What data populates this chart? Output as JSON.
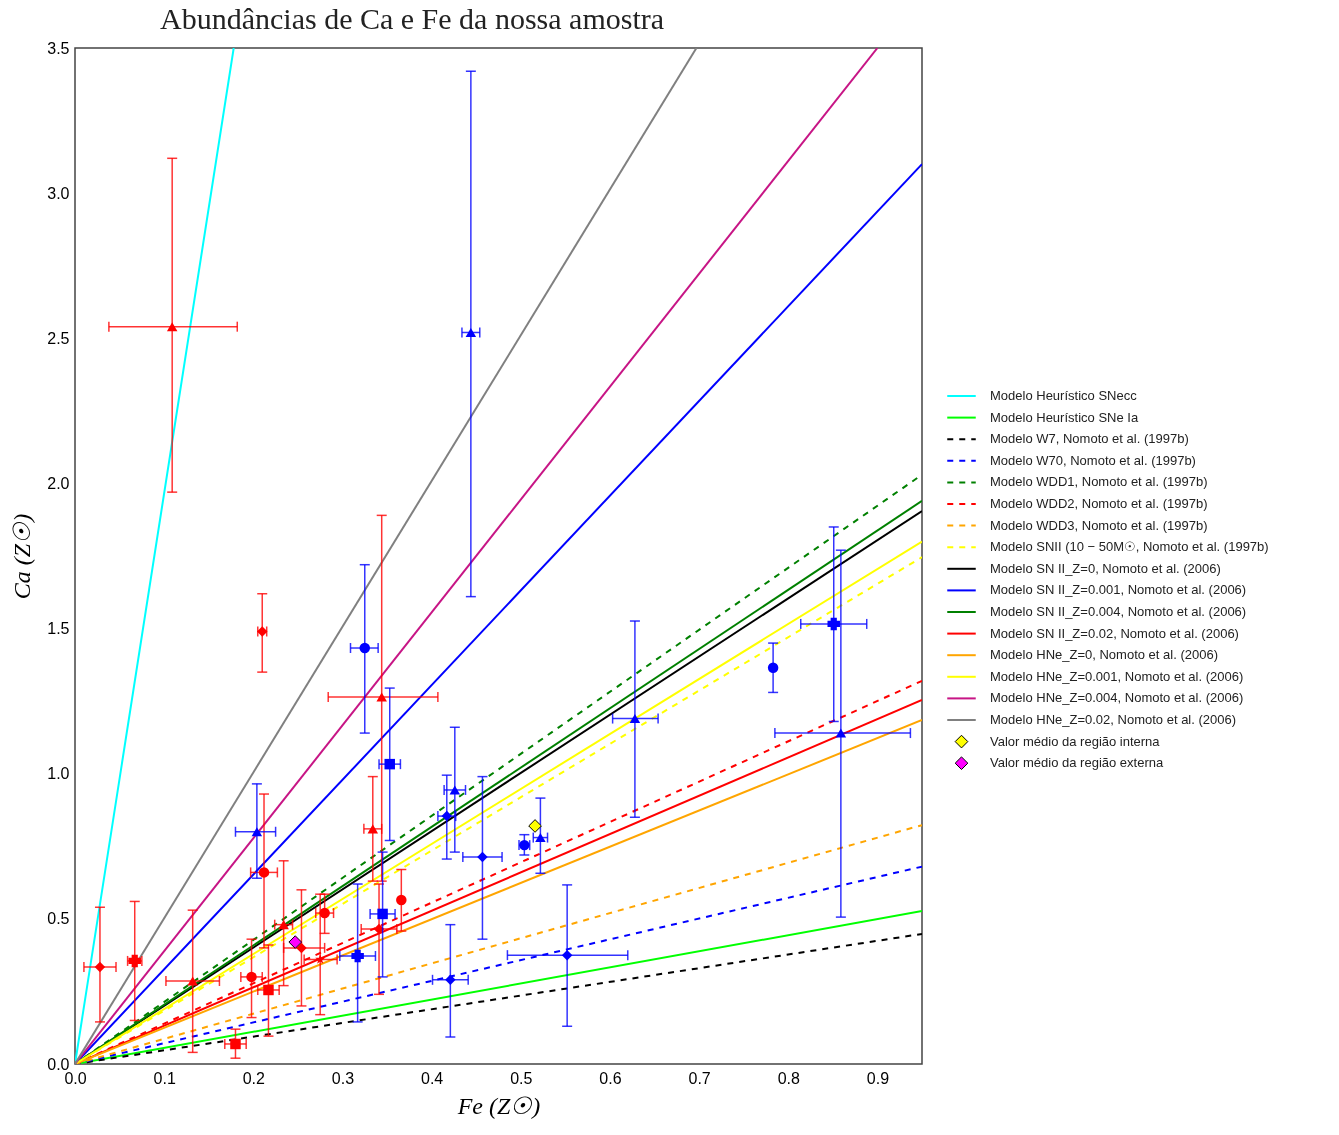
{
  "chart_data": {
    "type": "scatter",
    "title": "Abundâncias de Ca e Fe da nossa amostra",
    "xlabel": "Fe (Z☉)",
    "ylabel": "Ca (Z☉)",
    "xlim": [
      0,
      0.95
    ],
    "ylim": [
      0,
      3.5
    ],
    "xticks": [
      {
        "value": 0,
        "label": "0.0"
      },
      0.1,
      0.2,
      0.3,
      0.4,
      0.5,
      0.6,
      0.7,
      0.8,
      0.9
    ],
    "yticks": [
      {
        "value": 0,
        "label": "0.0"
      },
      0.5,
      {
        "value": 1,
        "label": "1.0"
      },
      1.5,
      {
        "value": 2,
        "label": "2.0"
      },
      2.5,
      {
        "value": 3,
        "label": "3.0"
      },
      3.5
    ],
    "grid": false,
    "legend": "right",
    "series": [
      {
        "name": "Modelo Heurístico SNecc",
        "color": "#00ffff",
        "type": "line",
        "line_style": "solid",
        "x": [
          0,
          0.178
        ],
        "values": [
          0,
          3.5
        ]
      },
      {
        "name": "Modelo Heurístico SNe Ia",
        "color": "#00ff00",
        "type": "line",
        "line_style": "solid",
        "x": [
          0,
          0.95
        ],
        "values": [
          0,
          0.527
        ]
      },
      {
        "name": "Modelo W7, Nomoto et al. (1997b)",
        "color": "#000000",
        "type": "line",
        "line_style": "dashed",
        "x": [
          0,
          0.95
        ],
        "values": [
          0,
          0.448
        ]
      },
      {
        "name": "Modelo W70, Nomoto et al. (1997b)",
        "color": "#0000ff",
        "type": "line",
        "line_style": "dashed",
        "x": [
          0,
          0.95
        ],
        "values": [
          0,
          0.68
        ]
      },
      {
        "name": "Modelo WDD1, Nomoto et al. (1997b)",
        "color": "#008000",
        "type": "line",
        "line_style": "dashed",
        "x": [
          0,
          0.95
        ],
        "values": [
          0,
          2.03
        ]
      },
      {
        "name": "Modelo WDD2, Nomoto et al. (1997b)",
        "color": "#ff0000",
        "type": "line",
        "line_style": "dashed",
        "x": [
          0,
          0.95
        ],
        "values": [
          0,
          1.32
        ]
      },
      {
        "name": "Modelo WDD3, Nomoto et al. (1997b)",
        "color": "#ffa500",
        "type": "line",
        "line_style": "dashed",
        "x": [
          0,
          0.95
        ],
        "values": [
          0,
          0.823
        ]
      },
      {
        "name": "Modelo SNII (10 − 50M☉, Nomoto et al. (1997b)",
        "color": "#ffff00",
        "type": "line",
        "line_style": "dashed",
        "x": [
          0,
          0.95
        ],
        "values": [
          0,
          1.746
        ]
      },
      {
        "name": "Modelo SN II_Z=0, Nomoto et al. (2006)",
        "color": "#000000",
        "type": "line",
        "line_style": "solid",
        "x": [
          0,
          0.95
        ],
        "values": [
          0,
          1.905
        ]
      },
      {
        "name": "Modelo SN II_Z=0.001, Nomoto et al. (2006)",
        "color": "#0000ff",
        "type": "line",
        "line_style": "solid",
        "x": [
          0,
          0.95
        ],
        "values": [
          0,
          3.1
        ]
      },
      {
        "name": "Modelo SN II_Z=0.004, Nomoto et al. (2006)",
        "color": "#008000",
        "type": "line",
        "line_style": "solid",
        "x": [
          0,
          0.95
        ],
        "values": [
          0,
          1.94
        ]
      },
      {
        "name": "Modelo SN II_Z=0.02, Nomoto et al. (2006)",
        "color": "#ff0000",
        "type": "line",
        "line_style": "solid",
        "x": [
          0,
          0.95
        ],
        "values": [
          0,
          1.254
        ]
      },
      {
        "name": "Modelo HNe_Z=0, Nomoto et al. (2006)",
        "color": "#ffa500",
        "type": "line",
        "line_style": "solid",
        "x": [
          0,
          0.95
        ],
        "values": [
          0,
          1.185
        ]
      },
      {
        "name": "Modelo HNe_Z=0.001, Nomoto et al. (2006)",
        "color": "#ffff00",
        "type": "line",
        "line_style": "solid",
        "x": [
          0,
          0.95
        ],
        "values": [
          0,
          1.8
        ]
      },
      {
        "name": "Modelo HNe_Z=0.004, Nomoto et al. (2006)",
        "color": "#c71585",
        "type": "line",
        "line_style": "solid",
        "x": [
          0,
          0.9
        ],
        "values": [
          0,
          3.5
        ]
      },
      {
        "name": "Modelo HNe_Z=0.02, Nomoto et al. (2006)",
        "color": "#808080",
        "type": "line",
        "line_style": "solid",
        "x": [
          0,
          0.697
        ],
        "values": [
          0,
          3.5
        ]
      },
      {
        "color": "#ff0000",
        "marker": "diamond",
        "x": [
          0.028,
          0.21,
          0.254,
          0.341
        ],
        "values": [
          0.334,
          1.49,
          0.4,
          0.465
        ],
        "errors": [
          [
            0.145,
            0.54
          ],
          [
            1.35,
            1.62
          ],
          [
            0.2,
            0.6
          ],
          [
            0.24,
            0.62
          ]
        ],
        "xerrors": [
          [
            0.01,
            0.046
          ],
          [
            0.205,
            0.215
          ],
          [
            0.234,
            0.28
          ],
          [
            0.321,
            0.361
          ]
        ]
      },
      {
        "color": "#ff0000",
        "marker": "cross",
        "x": [
          0.067
        ],
        "values": [
          0.355
        ],
        "errors": [
          [
            0.15,
            0.56
          ]
        ],
        "xerrors": [
          [
            0.059,
            0.075
          ]
        ]
      },
      {
        "color": "#ff0000",
        "marker": "triangle",
        "x": [
          0.109,
          0.132,
          0.234,
          0.334,
          0.344
        ],
        "values": [
          2.54,
          0.286,
          0.48,
          0.81,
          1.264
        ],
        "errors": [
          [
            1.97,
            3.12
          ],
          [
            0.04,
            0.53
          ],
          [
            0.27,
            0.7
          ],
          [
            0.63,
            0.99
          ],
          [
            0.63,
            1.89
          ]
        ],
        "xerrors": [
          [
            0.038,
            0.182
          ],
          [
            0.102,
            0.162
          ],
          [
            0.224,
            0.244
          ],
          [
            0.324,
            0.344
          ],
          [
            0.284,
            0.407
          ]
        ]
      },
      {
        "color": "#ff0000",
        "marker": "square",
        "x": [
          0.18,
          0.217
        ],
        "values": [
          0.069,
          0.255
        ],
        "errors": [
          [
            0.02,
            0.12
          ],
          [
            0.096,
            0.41
          ]
        ],
        "xerrors": [
          [
            0.168,
            0.192
          ],
          [
            0.205,
            0.229
          ]
        ]
      },
      {
        "color": "#ff0000",
        "marker": "circle",
        "x": [
          0.198,
          0.212,
          0.28,
          0.366
        ],
        "values": [
          0.3,
          0.66,
          0.52,
          0.565
        ],
        "errors": [
          [
            0.16,
            0.43
          ],
          [
            0.4,
            0.93
          ],
          [
            0.45,
            0.585
          ],
          [
            0.458,
            0.67
          ]
        ],
        "xerrors": [
          [
            0.186,
            0.21
          ],
          [
            0.197,
            0.227
          ],
          [
            0.27,
            0.29
          ],
          null
        ]
      },
      {
        "color": "#ff0000",
        "marker": "star",
        "x": [
          0.275
        ],
        "values": [
          0.36
        ],
        "errors": [
          [
            0.17,
            0.585
          ]
        ],
        "xerrors": [
          [
            0.257,
            0.294
          ]
        ]
      },
      {
        "color": "#0000ff",
        "marker": "triangle",
        "x": [
          0.204,
          0.426,
          0.522,
          0.444,
          0.628,
          0.859
        ],
        "values": [
          0.8,
          0.944,
          0.78,
          2.52,
          1.19,
          1.14
        ],
        "errors": [
          [
            0.64,
            0.965
          ],
          [
            0.73,
            1.16
          ],
          [
            0.657,
            0.916
          ],
          [
            1.61,
            3.42
          ],
          [
            0.85,
            1.526
          ],
          [
            0.506,
            1.77
          ]
        ],
        "xerrors": [
          [
            0.18,
            0.225
          ],
          [
            0.414,
            0.438
          ],
          [
            0.514,
            0.53
          ],
          [
            0.434,
            0.454
          ],
          [
            0.603,
            0.654
          ],
          [
            0.785,
            0.937
          ]
        ]
      },
      {
        "color": "#0000ff",
        "marker": "circle",
        "x": [
          0.325,
          0.504,
          0.783
        ],
        "values": [
          1.433,
          0.754,
          1.365
        ],
        "errors": [
          [
            1.14,
            1.72
          ],
          [
            0.72,
            0.79
          ],
          [
            1.28,
            1.45
          ]
        ],
        "xerrors": [
          [
            0.309,
            0.34
          ],
          [
            0.498,
            0.51
          ],
          null
        ]
      },
      {
        "color": "#0000ff",
        "marker": "square",
        "x": [
          0.353,
          0.345
        ],
        "values": [
          1.033,
          0.517
        ],
        "errors": [
          [
            0.77,
            1.295
          ],
          [
            0.3,
            0.73
          ]
        ],
        "xerrors": [
          [
            0.341,
            0.365
          ],
          [
            0.331,
            0.359
          ]
        ]
      },
      {
        "color": "#0000ff",
        "marker": "cross",
        "x": [
          0.317,
          0.851
        ],
        "values": [
          0.372,
          1.516
        ],
        "errors": [
          [
            0.145,
            0.62
          ],
          [
            1.18,
            1.85
          ]
        ],
        "xerrors": [
          [
            0.297,
            0.337
          ],
          [
            0.814,
            0.888
          ]
        ]
      },
      {
        "color": "#0000ff",
        "marker": "diamond",
        "x": [
          0.417,
          0.457,
          0.421,
          0.552
        ],
        "values": [
          0.854,
          0.713,
          0.29,
          0.375
        ],
        "errors": [
          [
            0.706,
            0.995
          ],
          [
            0.43,
            0.99
          ],
          [
            0.093,
            0.48
          ],
          [
            0.13,
            0.617
          ]
        ],
        "xerrors": [
          [
            0.407,
            0.427
          ],
          [
            0.435,
            0.479
          ],
          [
            0.401,
            0.441
          ],
          [
            0.485,
            0.62
          ]
        ]
      },
      {
        "name": "Valor médio da região interna",
        "color": "#ffff00",
        "marker": "diamond",
        "x": [
          0.516
        ],
        "values": [
          0.82
        ]
      },
      {
        "name": "Valor médio da região externa",
        "color": "#ff00ff",
        "marker": "diamond",
        "x": [
          0.247
        ],
        "values": [
          0.42
        ]
      }
    ]
  }
}
